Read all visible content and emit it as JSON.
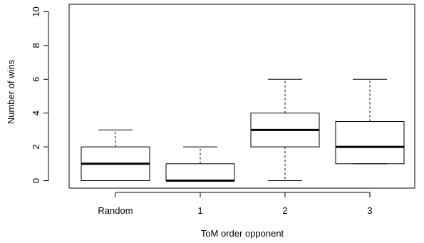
{
  "chart_data": {
    "type": "boxplot",
    "xlabel": "ToM order opponent",
    "ylabel": "Number of wins",
    "ylim": [
      0,
      10
    ],
    "yticks": [
      0,
      2,
      4,
      6,
      8,
      10
    ],
    "grid": false,
    "categories": [
      "Random",
      "1",
      "2",
      "3"
    ],
    "boxes": [
      {
        "category": "Random",
        "min": 0,
        "q1": 0,
        "median": 1,
        "q3": 2,
        "max": 3
      },
      {
        "category": "1",
        "min": 0,
        "q1": 0,
        "median": 0,
        "q3": 1,
        "max": 2
      },
      {
        "category": "2",
        "min": 0,
        "q1": 2,
        "median": 3,
        "q3": 4,
        "max": 6
      },
      {
        "category": "3",
        "min": 1,
        "q1": 1,
        "median": 2,
        "q3": 3.5,
        "max": 6
      }
    ]
  }
}
